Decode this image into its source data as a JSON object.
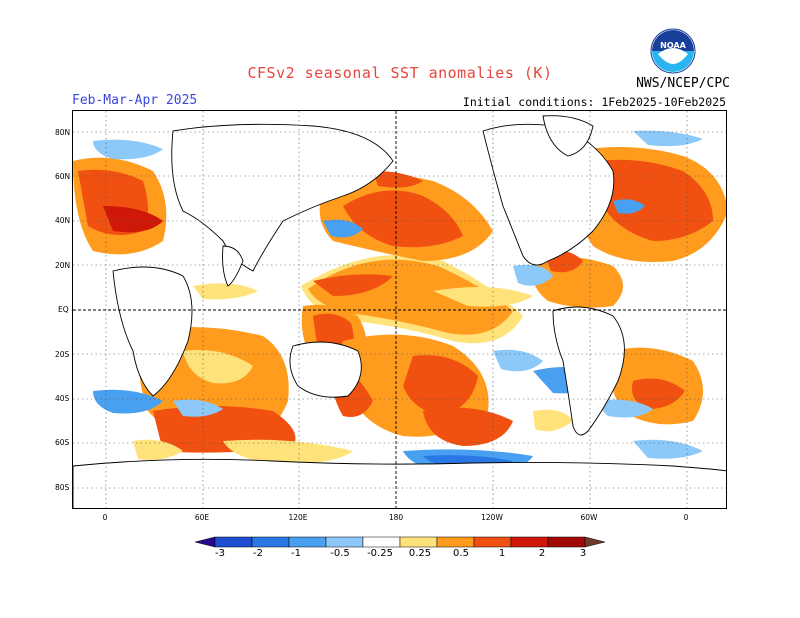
{
  "title": "CFSv2 seasonal SST anomalies (K)",
  "season": "Feb-Mar-Apr 2025",
  "initial_conditions": "Initial conditions: 1Feb2025-10Feb2025",
  "agency": "NWS/NCEP/CPC",
  "logo_text": "NOAA",
  "lat_labels": [
    "80N",
    "60N",
    "40N",
    "20N",
    "EQ",
    "20S",
    "40S",
    "60S",
    "80S"
  ],
  "lon_labels": [
    "0",
    "60E",
    "120E",
    "180",
    "120W",
    "60W",
    "0"
  ],
  "colorbar": {
    "labels": [
      "-3",
      "-2",
      "-1",
      "-0.5",
      "-0.25",
      "0.25",
      "0.5",
      "1",
      "2",
      "3"
    ],
    "colors": [
      "#2a0a8c",
      "#1f4fd0",
      "#2a78e6",
      "#4aa0f0",
      "#8cc8f8",
      "#ffffff",
      "#ffe27a",
      "#ff9c1e",
      "#f05010",
      "#d01808",
      "#a00a06",
      "#6e3c2c"
    ]
  },
  "palette": {
    "warm1": "#ffe27a",
    "warm2": "#ff9c1e",
    "warm3": "#f05010",
    "warm4": "#d01808",
    "cool1": "#8cc8f8",
    "cool2": "#4aa0f0",
    "cool3": "#2a78e6"
  }
}
